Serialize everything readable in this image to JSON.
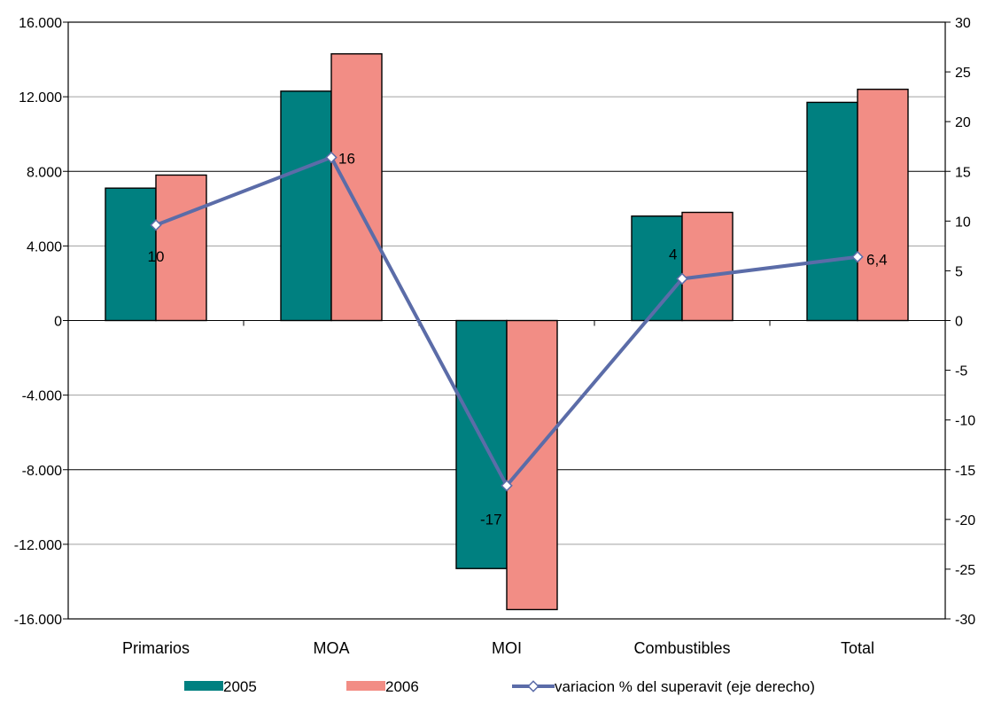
{
  "chart_data": {
    "type": "bar",
    "categories": [
      "Primarios",
      "MOA",
      "MOI",
      "Combustibles",
      "Total"
    ],
    "series": [
      {
        "name": "2005",
        "type": "bar",
        "axis": "left",
        "color": "#008080",
        "values": [
          7100,
          12300,
          -13300,
          5600,
          11700
        ]
      },
      {
        "name": "2006",
        "type": "bar",
        "axis": "left",
        "color": "#F28D85",
        "values": [
          7800,
          14300,
          -15500,
          5800,
          12400
        ]
      },
      {
        "name": "variacion % del superavit (eje derecho)",
        "type": "line",
        "axis": "right",
        "color": "#5B6CA8",
        "values": [
          9.6,
          16.4,
          -16.6,
          4.2,
          6.4
        ],
        "labels": [
          "10",
          "16",
          "-17",
          "4",
          "6,4"
        ]
      }
    ],
    "y_left": {
      "ylim": [
        -16000,
        16000
      ],
      "ticks": [
        16000,
        12000,
        8000,
        4000,
        0,
        -4000,
        -8000,
        -12000,
        -16000
      ],
      "tick_labels": [
        "16.000",
        "12.000",
        "8.000",
        "4.000",
        "0",
        "-4.000",
        "-8.000",
        "-12.000",
        "-16.000"
      ]
    },
    "y_right": {
      "ylim": [
        -30,
        30
      ],
      "ticks": [
        30,
        25,
        20,
        15,
        10,
        5,
        0,
        -5,
        -10,
        -15,
        -20,
        -25,
        -30
      ],
      "tick_labels": [
        "30",
        "25",
        "20",
        "15",
        "10",
        "5",
        "0",
        "-5",
        "-10",
        "-15",
        "-20",
        "-25",
        "-30"
      ]
    },
    "grid": true,
    "legend_position": "bottom"
  }
}
